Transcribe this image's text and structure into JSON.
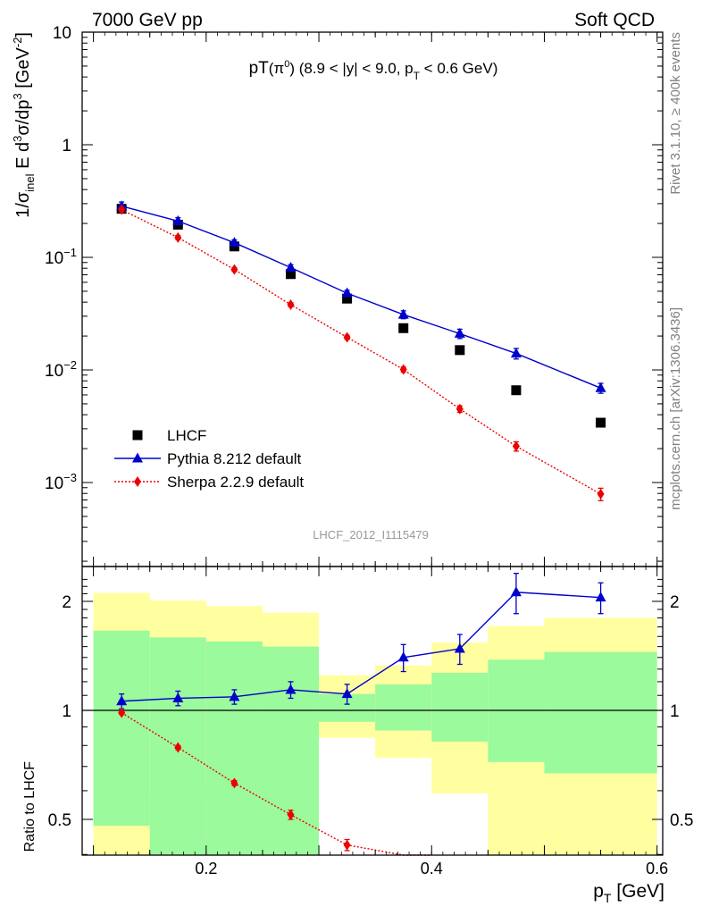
{
  "header": {
    "left": "7000 GeV pp",
    "right": "Soft QCD"
  },
  "side": {
    "rivet": "Rivet 3.1.10, ≥ 400k events",
    "mcplots": "mcplots.cern.ch [arXiv:1306.3436]"
  },
  "chart_data": [
    {
      "type": "scatter",
      "title": "pT(π⁰) (8.9 < |y| < 9.0, pT < 0.6 GeV)",
      "xlabel": "pT [GeV]",
      "ylabel": "1/σinel E d³σ/dp³ [GeV⁻²]",
      "yscale": "log",
      "ylim": [
        0.0002,
        10
      ],
      "xlim": [
        0.09,
        0.605
      ],
      "analysis_label": "LHCF_2012_I1115479",
      "legend_position": "bottom-left",
      "legend": [
        "LHCF",
        "Pythia 8.212 default",
        "Sherpa 2.2.9 default"
      ],
      "ytick_labels": [
        "10",
        "1",
        "10⁻¹",
        "10⁻²",
        "10⁻³"
      ],
      "series": [
        {
          "name": "LHCF",
          "color": "#000000",
          "marker": "square",
          "x": [
            0.125,
            0.175,
            0.225,
            0.275,
            0.325,
            0.375,
            0.425,
            0.475,
            0.55
          ],
          "y": [
            0.27,
            0.195,
            0.125,
            0.071,
            0.043,
            0.0235,
            0.015,
            0.0066,
            0.0034
          ]
        },
        {
          "name": "Pythia 8.212 default",
          "color": "#0000cc",
          "marker": "triangle",
          "line": "solid",
          "x": [
            0.125,
            0.175,
            0.225,
            0.275,
            0.325,
            0.375,
            0.425,
            0.475,
            0.55
          ],
          "y": [
            0.285,
            0.21,
            0.135,
            0.081,
            0.048,
            0.031,
            0.021,
            0.014,
            0.0069
          ],
          "err": [
            0.025,
            0.015,
            0.008,
            0.005,
            0.003,
            0.0025,
            0.002,
            0.0015,
            0.0007
          ]
        },
        {
          "name": "Sherpa 2.2.9 default",
          "color": "#ee0000",
          "marker": "diamond",
          "line": "dotted",
          "x": [
            0.125,
            0.175,
            0.225,
            0.275,
            0.325,
            0.375,
            0.425,
            0.475,
            0.55
          ],
          "y": [
            0.265,
            0.15,
            0.078,
            0.038,
            0.0195,
            0.0101,
            0.0045,
            0.0021,
            0.00079
          ],
          "err": [
            0.01,
            0.006,
            0.003,
            0.0015,
            0.0008,
            0.0005,
            0.0003,
            0.0002,
            0.0001
          ]
        }
      ]
    },
    {
      "type": "scatter",
      "ylabel": "Ratio to LHCF",
      "xlabel": "pT [GeV]",
      "xlim": [
        0.09,
        0.605
      ],
      "ylim": [
        0.35,
        2.3
      ],
      "xtick_labels": [
        "0.2",
        "0.4",
        "0.6"
      ],
      "ytick_labels": [
        "0.5",
        "1",
        "2"
      ],
      "reference_line": 1,
      "bands": {
        "bins": [
          [
            0.1,
            0.15
          ],
          [
            0.15,
            0.2
          ],
          [
            0.2,
            0.25
          ],
          [
            0.25,
            0.3
          ],
          [
            0.3,
            0.35
          ],
          [
            0.35,
            0.4
          ],
          [
            0.4,
            0.45
          ],
          [
            0.45,
            0.5
          ],
          [
            0.5,
            0.6
          ]
        ],
        "yellow_lo": [
          0.3,
          0.58,
          0.63,
          0.68,
          0.84,
          0.74,
          0.59,
          0.3,
          0.3
        ],
        "yellow_hi": [
          2.11,
          2.01,
          1.94,
          1.86,
          1.25,
          1.33,
          1.54,
          1.71,
          1.8
        ],
        "green_lo": [
          0.48,
          0.3,
          0.3,
          0.3,
          0.93,
          0.88,
          0.82,
          0.72,
          0.67
        ],
        "green_hi": [
          1.66,
          1.59,
          1.55,
          1.5,
          1.11,
          1.18,
          1.27,
          1.38,
          1.45
        ],
        "yellow_color": "#ffff9f",
        "green_color": "#9bfa9b"
      },
      "series": [
        {
          "name": "Pythia 8.212 default",
          "color": "#0000cc",
          "marker": "triangle",
          "line": "solid",
          "x": [
            0.125,
            0.175,
            0.225,
            0.275,
            0.325,
            0.375,
            0.425,
            0.475,
            0.55
          ],
          "y": [
            1.06,
            1.08,
            1.09,
            1.14,
            1.11,
            1.4,
            1.48,
            2.12,
            2.05
          ],
          "err": [
            0.05,
            0.05,
            0.05,
            0.06,
            0.07,
            0.12,
            0.14,
            0.27,
            0.2
          ]
        },
        {
          "name": "Sherpa 2.2.9 default",
          "color": "#ee0000",
          "marker": "diamond",
          "line": "dotted",
          "x": [
            0.125,
            0.175,
            0.225,
            0.275,
            0.325,
            0.375,
            0.4
          ],
          "y": [
            0.985,
            0.79,
            0.63,
            0.515,
            0.425,
            0.395,
            0.35
          ],
          "markers": [
            true,
            true,
            true,
            true,
            true,
            true,
            false
          ],
          "err": [
            0.01,
            0.01,
            0.01,
            0.015,
            0.015,
            0.02,
            0
          ]
        }
      ]
    }
  ]
}
